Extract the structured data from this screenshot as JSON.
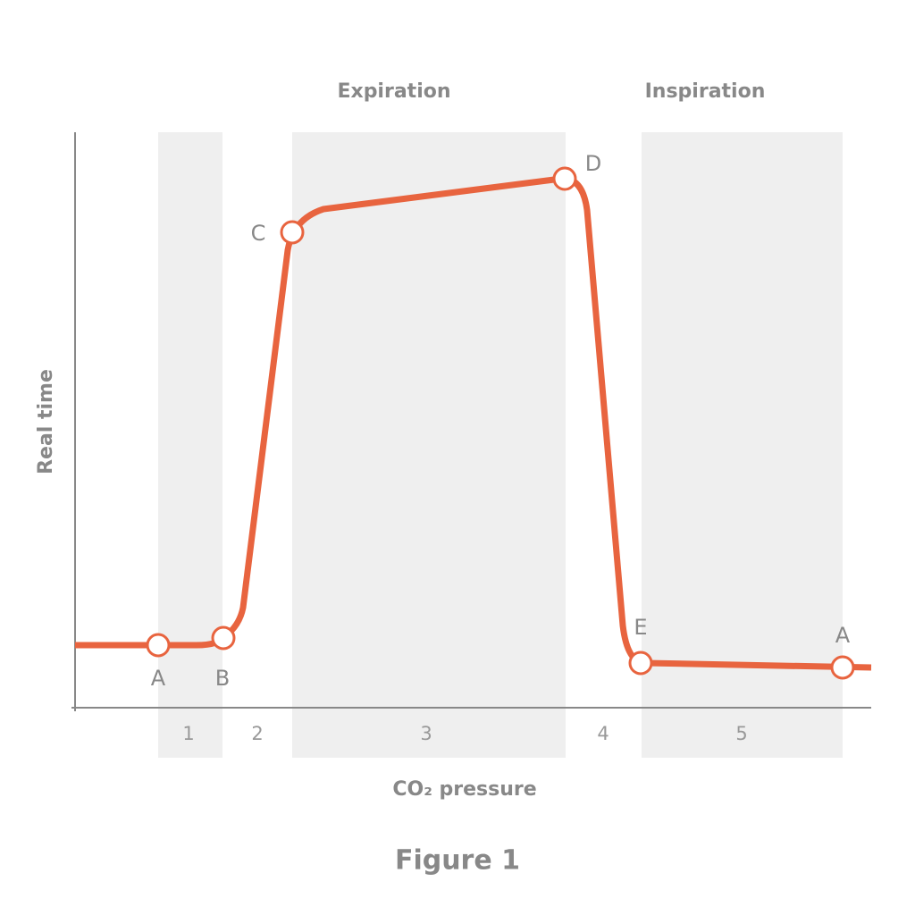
{
  "figure": {
    "caption": "Figure 1",
    "x_axis_label": "CO₂ pressure",
    "y_axis_label": "Real time",
    "regions": [
      {
        "label": "Expiration"
      },
      {
        "label": "Inspiration"
      }
    ],
    "phases": [
      "1",
      "2",
      "3",
      "4",
      "5"
    ],
    "points": [
      "A",
      "B",
      "C",
      "D",
      "E",
      "A"
    ]
  }
}
